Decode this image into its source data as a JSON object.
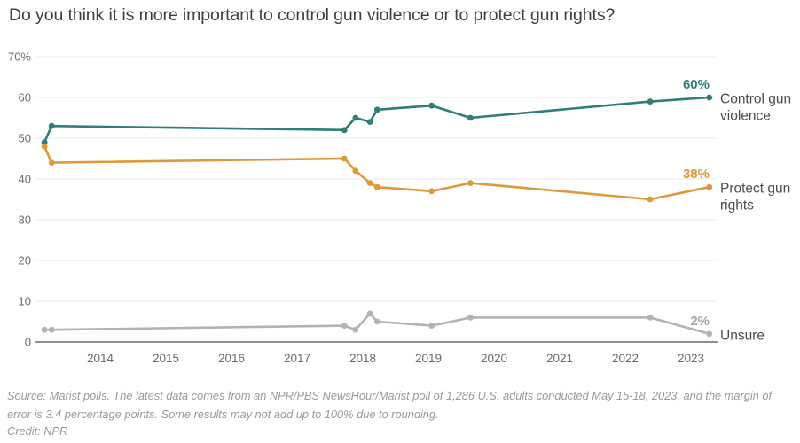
{
  "title": "Do you think it is more important to control gun violence or to protect gun rights?",
  "footer": {
    "source_line1": "Source: Marist polls. The latest data comes from an NPR/PBS NewsHour/Marist poll of 1,286 U.S. adults conducted May 15-18, 2023, and the margin of error is",
    "source_line2": "3.4 percentage points. Some results may not add up to 100% due to rounding.",
    "credit": "Credit: NPR"
  },
  "colors": {
    "teal": "#2d7f7a",
    "orange": "#e0993a",
    "gray_line": "#b3b3b3",
    "gridline": "#e8e8e8",
    "axis_line": "#8f8f8f",
    "tick_label": "#6b6b6b",
    "series_label": "#4c4c4c",
    "unsure_value_label": "#a6a6a6",
    "title_text": "#3f3f3f",
    "footer_text": "#9a9a9a"
  },
  "chart_data": {
    "type": "line",
    "title": "Do you think it is more important to control gun violence or to protect gun rights?",
    "xlabel": "",
    "ylabel": "",
    "grid": true,
    "legend_position": "line-end-labels-right",
    "x_range_years": [
      2013.0,
      2023.45
    ],
    "ylim": [
      0,
      70
    ],
    "y_ticks": [
      {
        "value": 70,
        "label": "70%"
      },
      {
        "value": 60,
        "label": "60"
      },
      {
        "value": 50,
        "label": "50"
      },
      {
        "value": 40,
        "label": "40"
      },
      {
        "value": 30,
        "label": "30"
      },
      {
        "value": 20,
        "label": "20"
      },
      {
        "value": 10,
        "label": "10"
      },
      {
        "value": 0,
        "label": "0"
      }
    ],
    "x_ticks": [
      "2014",
      "2015",
      "2016",
      "2017",
      "2018",
      "2019",
      "2020",
      "2021",
      "2022",
      "2023"
    ],
    "series": [
      {
        "name": "Control gun violence",
        "name_lines": [
          "Control gun",
          "violence"
        ],
        "color": "#2d7f7a",
        "value_label_color": "#2d7f7a",
        "end_label": "60%",
        "points": [
          {
            "x": 2013.15,
            "y": 49
          },
          {
            "x": 2013.26,
            "y": 53
          },
          {
            "x": 2017.72,
            "y": 52
          },
          {
            "x": 2017.89,
            "y": 55
          },
          {
            "x": 2018.11,
            "y": 54
          },
          {
            "x": 2018.22,
            "y": 57
          },
          {
            "x": 2019.05,
            "y": 58
          },
          {
            "x": 2019.64,
            "y": 55
          },
          {
            "x": 2022.38,
            "y": 59
          },
          {
            "x": 2023.28,
            "y": 60
          }
        ]
      },
      {
        "name": "Protect gun rights",
        "name_lines": [
          "Protect gun",
          "rights"
        ],
        "color": "#e0993a",
        "value_label_color": "#e0993a",
        "end_label": "38%",
        "points": [
          {
            "x": 2013.15,
            "y": 48
          },
          {
            "x": 2013.26,
            "y": 44
          },
          {
            "x": 2017.72,
            "y": 45
          },
          {
            "x": 2017.89,
            "y": 42
          },
          {
            "x": 2018.11,
            "y": 39
          },
          {
            "x": 2018.22,
            "y": 38
          },
          {
            "x": 2019.05,
            "y": 37
          },
          {
            "x": 2019.64,
            "y": 39
          },
          {
            "x": 2022.38,
            "y": 35
          },
          {
            "x": 2023.28,
            "y": 38
          }
        ]
      },
      {
        "name": "Unsure",
        "name_lines": [
          "Unsure"
        ],
        "color": "#b3b3b3",
        "value_label_color": "#a6a6a6",
        "end_label": "2%",
        "points": [
          {
            "x": 2013.15,
            "y": 3
          },
          {
            "x": 2013.26,
            "y": 3
          },
          {
            "x": 2017.72,
            "y": 4
          },
          {
            "x": 2017.89,
            "y": 3
          },
          {
            "x": 2018.11,
            "y": 7
          },
          {
            "x": 2018.22,
            "y": 5
          },
          {
            "x": 2019.05,
            "y": 4
          },
          {
            "x": 2019.64,
            "y": 6
          },
          {
            "x": 2022.38,
            "y": 6
          },
          {
            "x": 2023.28,
            "y": 2
          }
        ]
      }
    ]
  }
}
